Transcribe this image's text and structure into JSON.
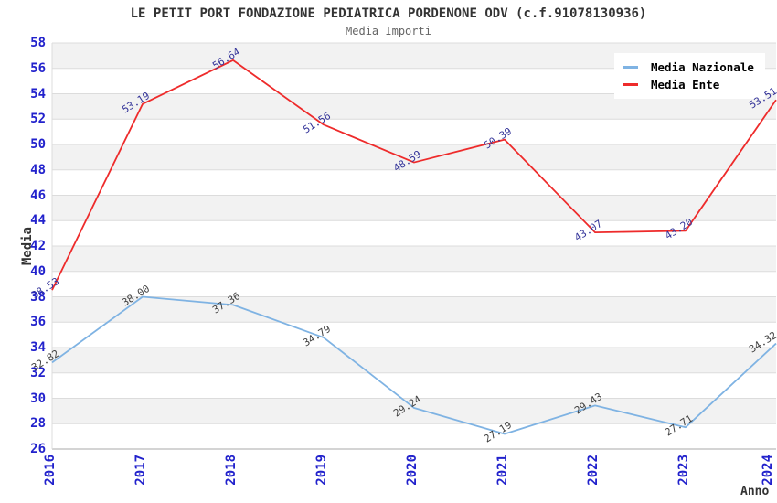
{
  "chart_data": {
    "type": "line",
    "title": "LE PETIT PORT FONDAZIONE PEDIATRICA PORDENONE ODV (c.f.91078130936)",
    "subtitle": "Media Importi",
    "xlabel": "Anno",
    "ylabel": "Media",
    "categories": [
      "2016",
      "2017",
      "2018",
      "2019",
      "2020",
      "2021",
      "2022",
      "2023",
      "2024"
    ],
    "series": [
      {
        "name": "Media Nazionale",
        "color": "#7fb3e3",
        "label_color": "#404040",
        "values": [
          32.82,
          38.0,
          37.36,
          34.79,
          29.24,
          27.19,
          29.43,
          27.71,
          34.32
        ]
      },
      {
        "name": "Media Ente",
        "color": "#ee2b2b",
        "label_color": "#333399",
        "values": [
          38.53,
          53.19,
          56.64,
          51.56,
          48.59,
          50.39,
          43.07,
          43.2,
          53.51
        ]
      }
    ],
    "ylim": [
      26,
      58
    ],
    "ytick_step": 2,
    "grid": true,
    "stripes": true,
    "legend_position": "top-right",
    "point_label_decimals": 2,
    "styles": {
      "background": "#ffffff",
      "title_color": "#333333",
      "subtitle_color": "#666666",
      "tick_color": "#2222cc",
      "axis_label_color": "#333333",
      "stripe_color": "#f2f2f2",
      "gridline_color": "#dcdcdc",
      "axis_line_color": "#aaaaaa",
      "legend_bg": "#ffffff",
      "legend_text_color": "#000000"
    }
  }
}
